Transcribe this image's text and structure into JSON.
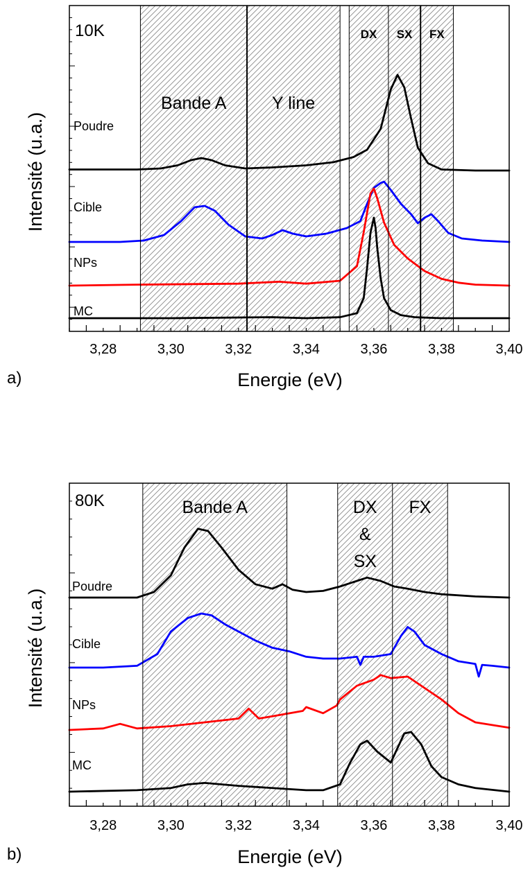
{
  "chart_data": [
    {
      "type": "line",
      "panel_label": "a)",
      "temperature_label": "10K",
      "xlabel": "Energie (eV)",
      "ylabel": "Intensité (u.a.)",
      "xlim": [
        3.27,
        3.4
      ],
      "x_ticks": [
        "3,28",
        "3,30",
        "3,32",
        "3,34",
        "3,36",
        "3,38",
        "3,40"
      ],
      "regions": [
        {
          "label": "Bande A",
          "range": [
            3.291,
            3.3225
          ],
          "style": "normal"
        },
        {
          "label": "Y line",
          "range": [
            3.3225,
            3.35
          ],
          "style": "normal"
        },
        {
          "label": "DX",
          "range": [
            3.3527,
            3.3643
          ],
          "style": "bold"
        },
        {
          "label": "SX",
          "range": [
            3.3643,
            3.3738
          ],
          "style": "bold"
        },
        {
          "label": "FX",
          "range": [
            3.3738,
            3.3835
          ],
          "style": "bold"
        }
      ],
      "boundary_lines": [
        3.291,
        3.3225,
        3.35,
        3.3527,
        3.3643,
        3.3738,
        3.3835
      ],
      "series": [
        {
          "name": "Poudre",
          "color": "#000000",
          "x": [
            3.27,
            3.28,
            3.29,
            3.297,
            3.302,
            3.306,
            3.309,
            3.312,
            3.316,
            3.322,
            3.33,
            3.34,
            3.348,
            3.354,
            3.358,
            3.362,
            3.365,
            3.367,
            3.369,
            3.371,
            3.373,
            3.376,
            3.38,
            3.39,
            3.4
          ],
          "y": [
            0.01,
            0.01,
            0.01,
            0.02,
            0.05,
            0.1,
            0.12,
            0.1,
            0.05,
            0.02,
            0.03,
            0.05,
            0.08,
            0.13,
            0.2,
            0.4,
            0.78,
            0.92,
            0.8,
            0.5,
            0.22,
            0.07,
            0.01,
            0.0,
            0.0
          ]
        },
        {
          "name": "Cible",
          "color": "#0000ff",
          "x": [
            3.27,
            3.285,
            3.292,
            3.298,
            3.303,
            3.307,
            3.31,
            3.313,
            3.317,
            3.322,
            3.327,
            3.33,
            3.333,
            3.336,
            3.34,
            3.346,
            3.352,
            3.356,
            3.358,
            3.36,
            3.362,
            3.363,
            3.365,
            3.368,
            3.371,
            3.373,
            3.375,
            3.377,
            3.379,
            3.382,
            3.386,
            3.392,
            3.4
          ],
          "y": [
            0.0,
            0.0,
            0.02,
            0.1,
            0.3,
            0.5,
            0.52,
            0.45,
            0.25,
            0.08,
            0.05,
            0.1,
            0.17,
            0.12,
            0.08,
            0.12,
            0.2,
            0.3,
            0.55,
            0.78,
            0.85,
            0.87,
            0.75,
            0.55,
            0.4,
            0.27,
            0.35,
            0.4,
            0.3,
            0.13,
            0.05,
            0.02,
            0.0
          ]
        },
        {
          "name": "NPs",
          "color": "#ff0000",
          "x": [
            3.27,
            3.29,
            3.32,
            3.332,
            3.34,
            3.35,
            3.355,
            3.357,
            3.359,
            3.36,
            3.361,
            3.363,
            3.366,
            3.37,
            3.375,
            3.38,
            3.385,
            3.39,
            3.4
          ],
          "y": [
            0.0,
            0.01,
            0.02,
            0.04,
            0.02,
            0.05,
            0.2,
            0.55,
            0.95,
            1.0,
            0.9,
            0.65,
            0.42,
            0.28,
            0.15,
            0.07,
            0.03,
            0.01,
            0.0
          ]
        },
        {
          "name": "MC",
          "color": "#000000",
          "x": [
            3.27,
            3.3,
            3.33,
            3.34,
            3.35,
            3.355,
            3.357,
            3.358,
            3.359,
            3.36,
            3.3605,
            3.361,
            3.362,
            3.363,
            3.365,
            3.368,
            3.372,
            3.38,
            3.4
          ],
          "y": [
            0.0,
            0.0,
            0.01,
            0.0,
            0.01,
            0.05,
            0.2,
            0.5,
            0.85,
            1.0,
            0.9,
            0.7,
            0.4,
            0.2,
            0.08,
            0.03,
            0.01,
            0.0,
            0.0
          ]
        }
      ]
    },
    {
      "type": "line",
      "panel_label": "b)",
      "temperature_label": "80K",
      "xlabel": "Energie (eV)",
      "ylabel": "Intensité (u.a.)",
      "xlim": [
        3.27,
        3.4
      ],
      "x_ticks": [
        "3,28",
        "3,30",
        "3,32",
        "3,34",
        "3,36",
        "3,38",
        "3,40"
      ],
      "regions": [
        {
          "label": "Bande A",
          "range": [
            3.2917,
            3.3343
          ],
          "style": "normal"
        },
        {
          "label": "DX & SX",
          "label_lines": [
            "DX",
            "&",
            "SX"
          ],
          "range": [
            3.3493,
            3.3655
          ],
          "style": "normal"
        },
        {
          "label": "FX",
          "range": [
            3.3655,
            3.3818
          ],
          "style": "normal"
        }
      ],
      "boundary_lines": [
        3.2917,
        3.3343,
        3.3493,
        3.3655,
        3.3818
      ],
      "series": [
        {
          "name": "Poudre",
          "color": "#000000",
          "x": [
            3.27,
            3.29,
            3.295,
            3.3,
            3.304,
            3.308,
            3.311,
            3.315,
            3.32,
            3.325,
            3.33,
            3.333,
            3.336,
            3.34,
            3.345,
            3.35,
            3.355,
            3.358,
            3.362,
            3.366,
            3.37,
            3.375,
            3.38,
            3.39,
            3.4
          ],
          "y": [
            0.0,
            0.0,
            0.05,
            0.2,
            0.45,
            0.62,
            0.6,
            0.45,
            0.25,
            0.12,
            0.08,
            0.12,
            0.07,
            0.05,
            0.06,
            0.1,
            0.15,
            0.18,
            0.15,
            0.1,
            0.08,
            0.05,
            0.03,
            0.01,
            0.0
          ]
        },
        {
          "name": "Cible",
          "color": "#0000ff",
          "x": [
            3.27,
            3.28,
            3.29,
            3.296,
            3.3,
            3.305,
            3.309,
            3.312,
            3.316,
            3.32,
            3.325,
            3.33,
            3.335,
            3.34,
            3.345,
            3.35,
            3.355,
            3.356,
            3.357,
            3.36,
            3.365,
            3.368,
            3.37,
            3.372,
            3.375,
            3.38,
            3.385,
            3.39,
            3.391,
            3.392,
            3.395,
            3.4
          ],
          "y": [
            0.0,
            0.0,
            0.02,
            0.15,
            0.4,
            0.55,
            0.6,
            0.58,
            0.48,
            0.4,
            0.3,
            0.22,
            0.18,
            0.12,
            0.1,
            0.1,
            0.12,
            0.03,
            0.12,
            0.12,
            0.15,
            0.35,
            0.45,
            0.4,
            0.25,
            0.15,
            0.07,
            0.04,
            -0.1,
            0.03,
            0.02,
            0.0
          ]
        },
        {
          "name": "NPs",
          "color": "#ff0000",
          "x": [
            3.27,
            3.28,
            3.285,
            3.29,
            3.3,
            3.31,
            3.32,
            3.323,
            3.326,
            3.33,
            3.339,
            3.34,
            3.345,
            3.349,
            3.35,
            3.355,
            3.36,
            3.362,
            3.365,
            3.37,
            3.375,
            3.38,
            3.385,
            3.39,
            3.4
          ],
          "y": [
            0.0,
            0.02,
            0.08,
            0.02,
            0.05,
            0.1,
            0.15,
            0.28,
            0.15,
            0.18,
            0.25,
            0.3,
            0.22,
            0.32,
            0.4,
            0.58,
            0.66,
            0.72,
            0.68,
            0.7,
            0.55,
            0.4,
            0.22,
            0.1,
            0.03
          ]
        },
        {
          "name": "MC",
          "color": "#000000",
          "x": [
            3.27,
            3.29,
            3.3,
            3.305,
            3.31,
            3.315,
            3.32,
            3.33,
            3.34,
            3.345,
            3.35,
            3.353,
            3.356,
            3.358,
            3.361,
            3.365,
            3.367,
            3.369,
            3.371,
            3.374,
            3.377,
            3.38,
            3.385,
            3.39,
            3.4
          ],
          "y": [
            0.0,
            0.02,
            0.05,
            0.1,
            0.12,
            0.1,
            0.08,
            0.05,
            0.02,
            0.02,
            0.1,
            0.4,
            0.65,
            0.7,
            0.55,
            0.4,
            0.6,
            0.8,
            0.82,
            0.65,
            0.35,
            0.2,
            0.1,
            0.05,
            0.0
          ]
        }
      ]
    }
  ]
}
